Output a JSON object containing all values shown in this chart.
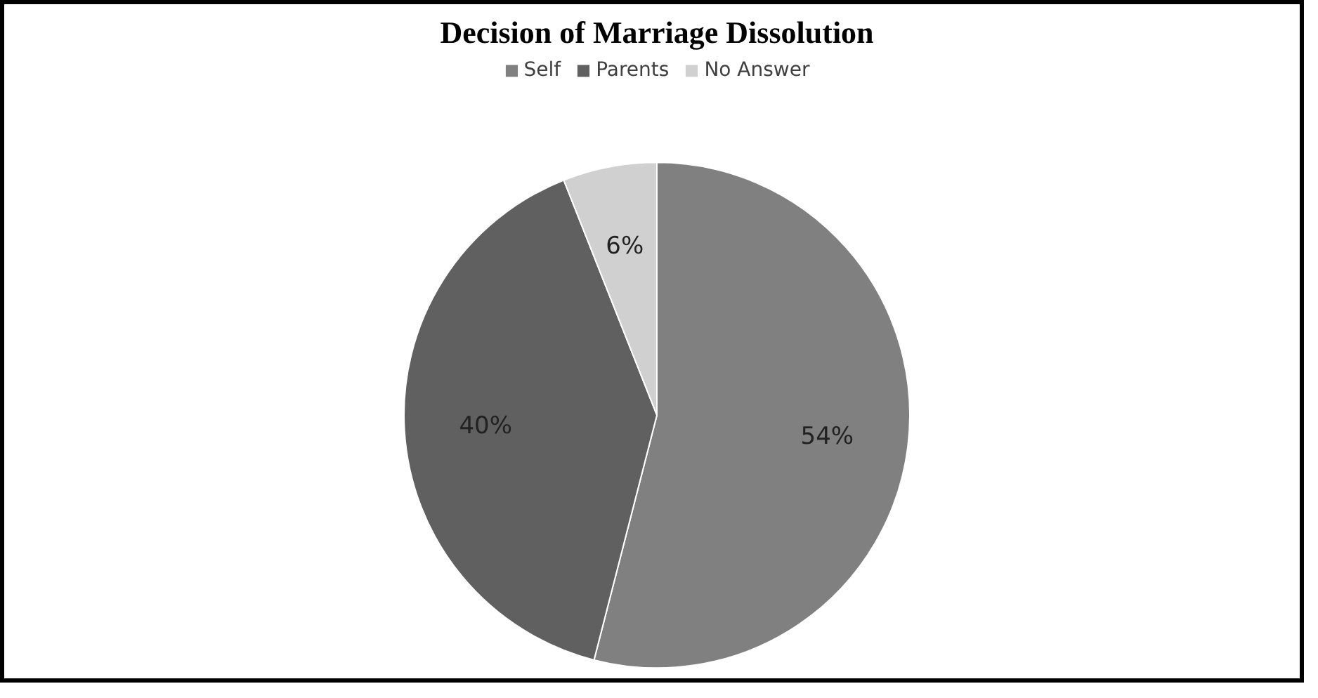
{
  "chart_data": {
    "type": "pie",
    "title": "Decision of Marriage Dissolution",
    "categories": [
      "Self",
      "Parents",
      "No Answer"
    ],
    "values": [
      54,
      40,
      6
    ],
    "colors": [
      "#808080",
      "#606060",
      "#d0d0d0"
    ],
    "value_labels": [
      "54%",
      "40%",
      "6%"
    ],
    "legend": "top"
  }
}
